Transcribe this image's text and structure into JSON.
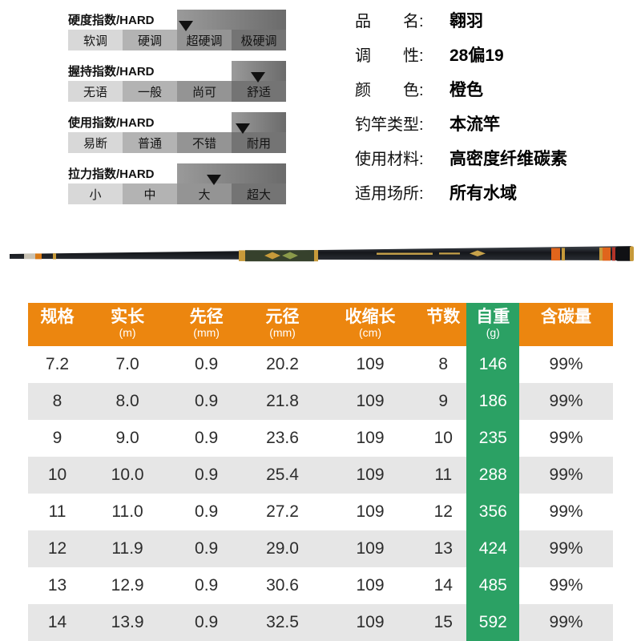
{
  "indicators": [
    {
      "title": "硬度指数/HARD",
      "levels": [
        "软调",
        "硬调",
        "超硬调",
        "极硬调"
      ],
      "selected": "超硬调",
      "marker_pct": 54,
      "filled_from_pct": 50
    },
    {
      "title": "握持指数/HARD",
      "levels": [
        "无语",
        "一般",
        "尚可",
        "舒适"
      ],
      "selected": "舒适",
      "marker_pct": 87,
      "filled_from_pct": 75
    },
    {
      "title": "使用指数/HARD",
      "levels": [
        "易断",
        "普通",
        "不错",
        "耐用"
      ],
      "selected": "耐用",
      "marker_pct": 80,
      "filled_from_pct": 75
    },
    {
      "title": "拉力指数/HARD",
      "levels": [
        "小",
        "中",
        "大",
        "超大"
      ],
      "selected": "大",
      "marker_pct": 67,
      "filled_from_pct": 50
    }
  ],
  "specs": [
    {
      "label": "品　　名:",
      "value": "翱羽"
    },
    {
      "label": "调　　性:",
      "value": "28偏19"
    },
    {
      "label": "颜　　色:",
      "value": "橙色"
    },
    {
      "label": "钓竿类型:",
      "value": "本流竿"
    },
    {
      "label": "使用材料:",
      "value": "高密度纤维碳素"
    },
    {
      "label": "适用场所:",
      "value": "所有水域"
    }
  ],
  "table": {
    "headers": [
      {
        "label": "规格",
        "unit": ""
      },
      {
        "label": "实长",
        "unit": "(m)"
      },
      {
        "label": "先径",
        "unit": "(mm)"
      },
      {
        "label": "元径",
        "unit": "(mm)"
      },
      {
        "label": "收缩长",
        "unit": "(cm)"
      },
      {
        "label": "节数",
        "unit": ""
      },
      {
        "label": "自重",
        "unit": "(g)"
      },
      {
        "label": "含碳量",
        "unit": ""
      }
    ],
    "green_column_index": 6,
    "rows": [
      [
        "7.2",
        "7.0",
        "0.9",
        "20.2",
        "109",
        "8",
        "146",
        "99%"
      ],
      [
        "8",
        "8.0",
        "0.9",
        "21.8",
        "109",
        "9",
        "186",
        "99%"
      ],
      [
        "9",
        "9.0",
        "0.9",
        "23.6",
        "109",
        "10",
        "235",
        "99%"
      ],
      [
        "10",
        "10.0",
        "0.9",
        "25.4",
        "109",
        "11",
        "288",
        "99%"
      ],
      [
        "11",
        "11.0",
        "0.9",
        "27.2",
        "109",
        "12",
        "356",
        "99%"
      ],
      [
        "12",
        "11.9",
        "0.9",
        "29.0",
        "109",
        "13",
        "424",
        "99%"
      ],
      [
        "13",
        "12.9",
        "0.9",
        "30.6",
        "109",
        "14",
        "485",
        "99%"
      ],
      [
        "14",
        "13.9",
        "0.9",
        "32.5",
        "109",
        "15",
        "592",
        "99%"
      ]
    ]
  },
  "colors": {
    "header_orange": "#ec860f",
    "weight_green": "#2ba164",
    "row_alt_gray": "#e6e6e6",
    "marker_black": "#111111"
  }
}
